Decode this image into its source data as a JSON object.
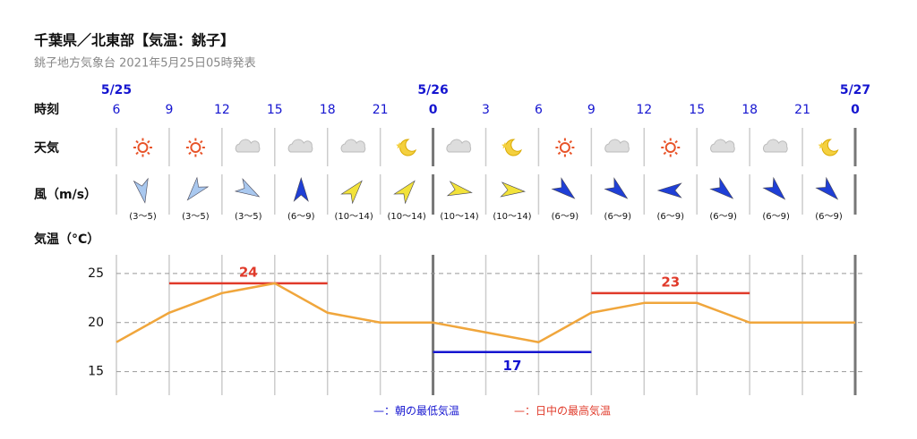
{
  "header": {
    "title": "千葉県／北東部【気温：銚子】",
    "subtitle": "銚子地方気象台 2021年5月25日05時発表"
  },
  "row_labels": {
    "time": "時刻",
    "weather": "天気",
    "wind": "風（m/s）"
  },
  "dates": [
    "5/25",
    null,
    null,
    null,
    null,
    null,
    "5/26",
    null,
    null,
    null,
    null,
    null,
    null,
    null,
    "5/27"
  ],
  "times": [
    "6",
    "9",
    "12",
    "15",
    "18",
    "21",
    "0",
    "3",
    "6",
    "9",
    "12",
    "15",
    "18",
    "21",
    "0"
  ],
  "weather": [
    "sunny",
    "sunny",
    "cloudy",
    "cloudy",
    "cloudy",
    "clear-night",
    "cloudy",
    "clear-night",
    "sunny",
    "cloudy",
    "sunny",
    "cloudy",
    "cloudy",
    "clear-night"
  ],
  "wind": {
    "labels": [
      "(3〜5)",
      "(3〜5)",
      "(3〜5)",
      "(6〜9)",
      "(10〜14)",
      "(10〜14)",
      "(10〜14)",
      "(10〜14)",
      "(6〜9)",
      "(6〜9)",
      "(6〜9)",
      "(6〜9)",
      "(6〜9)",
      "(6〜9)"
    ],
    "directions": [
      170,
      220,
      120,
      0,
      40,
      40,
      100,
      95,
      130,
      130,
      270,
      130,
      135,
      135
    ],
    "colors": [
      "#a9c8ef",
      "#a9c8ef",
      "#a9c8ef",
      "#1f3fd6",
      "#f2e23a",
      "#f2e23a",
      "#f2e23a",
      "#f2e23a",
      "#1f3fd6",
      "#1f3fd6",
      "#1f3fd6",
      "#1f3fd6",
      "#1f3fd6",
      "#1f3fd6"
    ]
  },
  "chart_data": {
    "type": "line",
    "y_label": "気温（°C）",
    "series": [
      {
        "name": "気温",
        "color": "#f0a63c",
        "values": [
          18,
          21,
          23,
          24,
          21,
          20,
          20,
          19,
          18,
          21,
          22,
          22,
          20,
          20,
          20
        ]
      }
    ],
    "highs": {
      "name": "—：日中の最高気温",
      "color": "#e03a2a",
      "items": [
        {
          "value": 24,
          "start": 1,
          "end": 4
        },
        {
          "value": 23,
          "start": 9,
          "end": 12
        }
      ]
    },
    "lows": {
      "name": "—：朝の最低気温",
      "color": "#1515d0",
      "items": [
        {
          "value": 17,
          "start": 6,
          "end": 9
        }
      ]
    },
    "ylim": [
      12.6,
      26.9
    ],
    "yticks": [
      15,
      20,
      25
    ],
    "grid": true
  }
}
